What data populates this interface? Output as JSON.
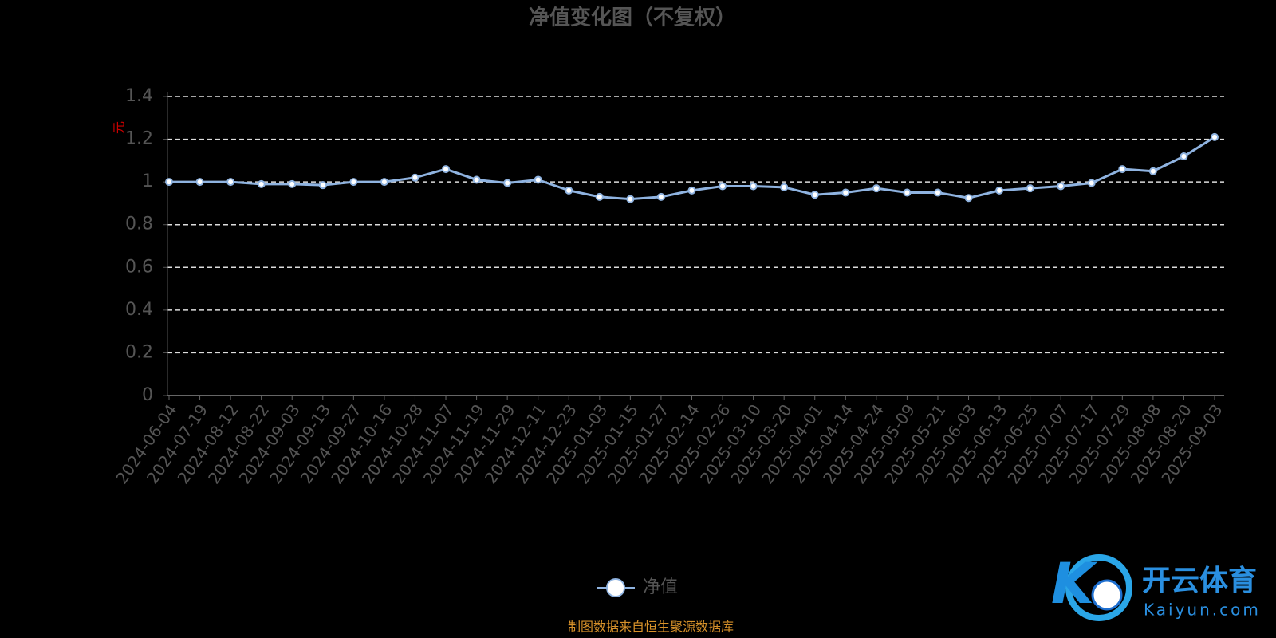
{
  "chart_data": {
    "type": "line",
    "title": "净值变化图（不复权）",
    "y_label": "元",
    "categories": [
      "2024-06-04",
      "2024-07-19",
      "2024-08-12",
      "2024-08-22",
      "2024-09-03",
      "2024-09-13",
      "2024-09-27",
      "2024-10-16",
      "2024-10-28",
      "2024-11-07",
      "2024-11-19",
      "2024-11-29",
      "2024-12-11",
      "2024-12-23",
      "2025-01-03",
      "2025-01-15",
      "2025-01-27",
      "2025-02-14",
      "2025-02-26",
      "2025-03-10",
      "2025-03-20",
      "2025-04-01",
      "2025-04-14",
      "2025-04-24",
      "2025-05-09",
      "2025-05-21",
      "2025-06-03",
      "2025-06-13",
      "2025-06-25",
      "2025-07-07",
      "2025-07-17",
      "2025-07-29",
      "2025-08-08",
      "2025-08-20",
      "2025-09-03"
    ],
    "series": [
      {
        "name": "净值",
        "color": "#8fb3e0",
        "values": [
          1.0,
          1.0,
          1.0,
          0.99,
          0.99,
          0.985,
          1.0,
          1.0,
          1.02,
          1.06,
          1.01,
          0.995,
          1.01,
          0.96,
          0.93,
          0.92,
          0.93,
          0.96,
          0.98,
          0.98,
          0.975,
          0.94,
          0.95,
          0.97,
          0.95,
          0.95,
          0.925,
          0.96,
          0.97,
          0.98,
          0.995,
          1.06,
          1.05,
          1.12,
          1.21
        ]
      }
    ],
    "ylim": [
      0,
      1.4
    ],
    "yticks": [
      0,
      0.2,
      0.4,
      0.6,
      0.8,
      1,
      1.2,
      1.4
    ],
    "grid": true,
    "source": "制图数据来自恒生聚源数据库"
  },
  "watermark": {
    "brand": "开云体育",
    "site": "Kaiyun.com"
  }
}
